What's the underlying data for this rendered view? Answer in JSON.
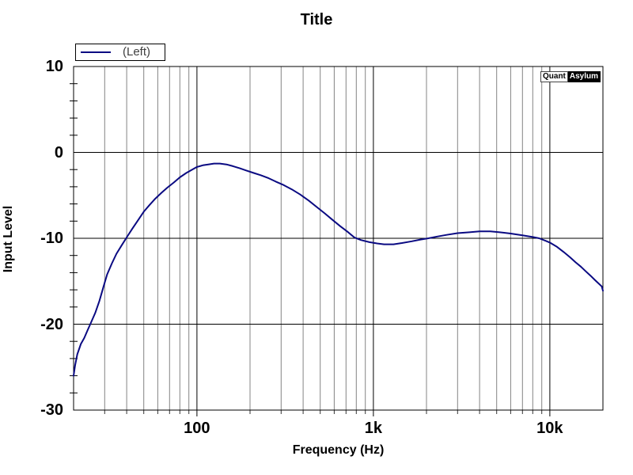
{
  "title": "Title",
  "legend": {
    "label": "(Left)"
  },
  "watermark": {
    "left": "Quant",
    "right": "Asylum"
  },
  "colors": {
    "curve": "#0a0a82",
    "minor_grid": "#848484",
    "major_grid": "#000000",
    "axis": "#000000",
    "background": "#ffffff"
  },
  "chart_data": {
    "type": "line",
    "title": "Title",
    "xlabel": "Frequency (Hz)",
    "ylabel": "Input Level",
    "x_scale": "log",
    "x_range": [
      20,
      20000
    ],
    "y_range": [
      -30,
      10
    ],
    "grid": "major-on, x-minor-on",
    "legend_position": "top-left",
    "x_major_ticks": [
      {
        "value": 100,
        "label": "100"
      },
      {
        "value": 1000,
        "label": "1k"
      },
      {
        "value": 10000,
        "label": "10k"
      }
    ],
    "x_minor_gridlines": [
      30,
      40,
      50,
      60,
      70,
      80,
      90,
      200,
      300,
      400,
      500,
      600,
      700,
      800,
      900,
      2000,
      3000,
      4000,
      5000,
      6000,
      7000,
      8000,
      9000
    ],
    "y_major_ticks": [
      {
        "value": 10,
        "label": "10"
      },
      {
        "value": 0,
        "label": "0"
      },
      {
        "value": -10,
        "label": "-10"
      },
      {
        "value": -20,
        "label": "-20"
      },
      {
        "value": -30,
        "label": "-30"
      }
    ],
    "y_minor_tick_step": 2,
    "series": [
      {
        "name": "(Left)",
        "color": "#0a0a82",
        "points": [
          [
            20,
            -26.0
          ],
          [
            20.4,
            -24.8
          ],
          [
            21,
            -23.5
          ],
          [
            22,
            -22.3
          ],
          [
            23,
            -21.6
          ],
          [
            24,
            -20.7
          ],
          [
            25,
            -19.9
          ],
          [
            26.5,
            -18.7
          ],
          [
            28,
            -17.3
          ],
          [
            29.5,
            -15.7
          ],
          [
            31,
            -14.2
          ],
          [
            33,
            -12.9
          ],
          [
            35,
            -11.8
          ],
          [
            37.5,
            -10.8
          ],
          [
            40,
            -9.9
          ],
          [
            43,
            -8.9
          ],
          [
            46,
            -8.0
          ],
          [
            50,
            -6.9
          ],
          [
            54,
            -6.1
          ],
          [
            58,
            -5.4
          ],
          [
            63,
            -4.7
          ],
          [
            68,
            -4.1
          ],
          [
            74,
            -3.5
          ],
          [
            80,
            -2.9
          ],
          [
            87,
            -2.4
          ],
          [
            94,
            -2.0
          ],
          [
            100,
            -1.7
          ],
          [
            108,
            -1.5
          ],
          [
            116,
            -1.4
          ],
          [
            125,
            -1.3
          ],
          [
            135,
            -1.3
          ],
          [
            147,
            -1.4
          ],
          [
            160,
            -1.6
          ],
          [
            175,
            -1.85
          ],
          [
            190,
            -2.1
          ],
          [
            210,
            -2.4
          ],
          [
            230,
            -2.65
          ],
          [
            255,
            -3.0
          ],
          [
            280,
            -3.4
          ],
          [
            310,
            -3.8
          ],
          [
            345,
            -4.3
          ],
          [
            385,
            -4.9
          ],
          [
            430,
            -5.6
          ],
          [
            480,
            -6.4
          ],
          [
            530,
            -7.1
          ],
          [
            590,
            -7.9
          ],
          [
            650,
            -8.6
          ],
          [
            710,
            -9.2
          ],
          [
            780,
            -9.9
          ],
          [
            850,
            -10.2
          ],
          [
            950,
            -10.45
          ],
          [
            1050,
            -10.6
          ],
          [
            1150,
            -10.7
          ],
          [
            1300,
            -10.7
          ],
          [
            1450,
            -10.55
          ],
          [
            1650,
            -10.35
          ],
          [
            1850,
            -10.15
          ],
          [
            2050,
            -10.0
          ],
          [
            2300,
            -9.8
          ],
          [
            2600,
            -9.6
          ],
          [
            3000,
            -9.4
          ],
          [
            3500,
            -9.3
          ],
          [
            4000,
            -9.2
          ],
          [
            4600,
            -9.2
          ],
          [
            5200,
            -9.3
          ],
          [
            6000,
            -9.45
          ],
          [
            7000,
            -9.65
          ],
          [
            8000,
            -9.85
          ],
          [
            8700,
            -10.0
          ],
          [
            9500,
            -10.3
          ],
          [
            10000,
            -10.5
          ],
          [
            11000,
            -11.0
          ],
          [
            12000,
            -11.6
          ],
          [
            13000,
            -12.2
          ],
          [
            14000,
            -12.8
          ],
          [
            15000,
            -13.3
          ],
          [
            16000,
            -13.85
          ],
          [
            17000,
            -14.35
          ],
          [
            18000,
            -14.85
          ],
          [
            19000,
            -15.3
          ],
          [
            19700,
            -15.6
          ],
          [
            20000,
            -16.1
          ]
        ]
      }
    ]
  }
}
